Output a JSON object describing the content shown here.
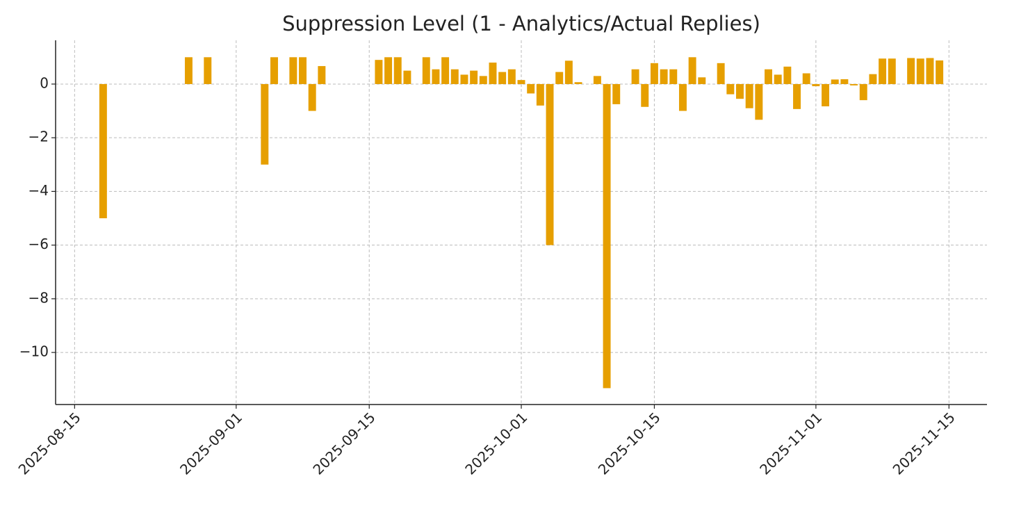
{
  "chart_data": {
    "type": "bar",
    "title": "Suppression Level (1 - Analytics/Actual Replies)",
    "x": [
      "2025-08-18",
      "2025-08-27",
      "2025-08-29",
      "2025-09-04",
      "2025-09-05",
      "2025-09-07",
      "2025-09-08",
      "2025-09-09",
      "2025-09-10",
      "2025-09-16",
      "2025-09-17",
      "2025-09-18",
      "2025-09-19",
      "2025-09-21",
      "2025-09-22",
      "2025-09-23",
      "2025-09-24",
      "2025-09-25",
      "2025-09-26",
      "2025-09-27",
      "2025-09-28",
      "2025-09-29",
      "2025-09-30",
      "2025-10-01",
      "2025-10-02",
      "2025-10-03",
      "2025-10-04",
      "2025-10-05",
      "2025-10-06",
      "2025-10-07",
      "2025-10-09",
      "2025-10-10",
      "2025-10-11",
      "2025-10-13",
      "2025-10-14",
      "2025-10-15",
      "2025-10-16",
      "2025-10-17",
      "2025-10-18",
      "2025-10-19",
      "2025-10-20",
      "2025-10-22",
      "2025-10-23",
      "2025-10-24",
      "2025-10-25",
      "2025-10-26",
      "2025-10-27",
      "2025-10-28",
      "2025-10-29",
      "2025-10-30",
      "2025-10-31",
      "2025-11-01",
      "2025-11-02",
      "2025-11-03",
      "2025-11-04",
      "2025-11-05",
      "2025-11-06",
      "2025-11-07",
      "2025-11-08",
      "2025-11-09",
      "2025-11-11",
      "2025-11-12",
      "2025-11-13",
      "2025-11-14"
    ],
    "values": [
      -5,
      1,
      1,
      -3,
      1,
      1,
      1,
      -1,
      0.67,
      0.9,
      1,
      1,
      0.5,
      1,
      0.55,
      1,
      0.55,
      0.35,
      0.5,
      0.3,
      0.8,
      0.45,
      0.55,
      0.15,
      -0.35,
      -0.8,
      -6,
      0.45,
      0.87,
      0.07,
      0.3,
      -11.33,
      -0.75,
      0.55,
      -0.85,
      0.78,
      0.55,
      0.55,
      -1,
      1,
      0.25,
      0.78,
      -0.38,
      -0.55,
      -0.9,
      -1.33,
      0.55,
      0.35,
      0.65,
      -0.93,
      0.4,
      -0.08,
      -0.83,
      0.17,
      0.18,
      -0.05,
      -0.6,
      0.37,
      0.95,
      0.95,
      0.97,
      0.95,
      0.97,
      0.88
    ],
    "color": "#e69f00",
    "xlim": [
      "2025-08-13",
      "2025-11-19"
    ],
    "xticks": [
      "2025-08-15",
      "2025-09-01",
      "2025-09-15",
      "2025-10-01",
      "2025-10-15",
      "2025-11-01",
      "2025-11-15"
    ],
    "ylim": [
      -11.94,
      1.63
    ],
    "yticks": [
      {
        "value": -10,
        "label": "−10"
      },
      {
        "value": -8,
        "label": "−8"
      },
      {
        "value": -6,
        "label": "−6"
      },
      {
        "value": -4,
        "label": "−4"
      },
      {
        "value": -2,
        "label": "−2"
      },
      0
    ],
    "grid": true
  }
}
